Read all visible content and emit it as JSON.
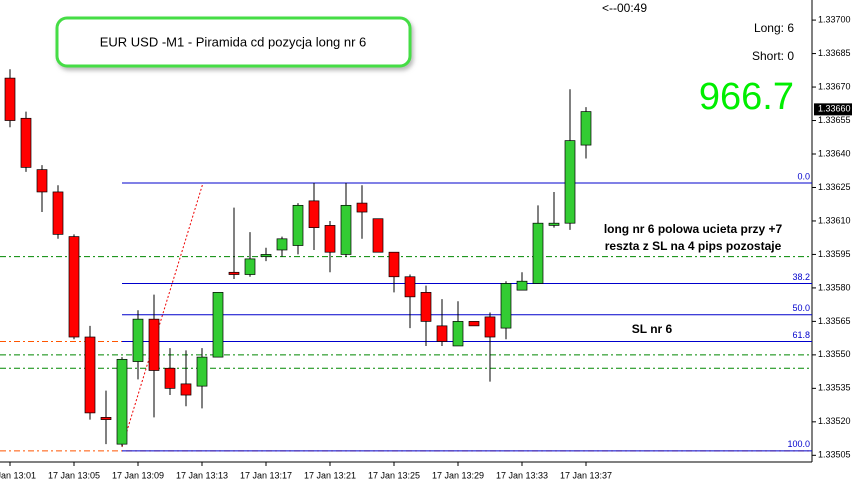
{
  "chart_data": {
    "type": "candlestick",
    "title": "EUR USD -M1 - Piramida cd pozycja long nr 6",
    "timer": "<--00:49",
    "long": "Long: 6",
    "short": "Short: 0",
    "profit": 966.7,
    "annotations": [
      "long nr 6 polowa ucieta przy +7",
      "reszta z SL na 4 pips pozostaje",
      "SL nr 6"
    ],
    "up_color": "#33cc33",
    "down_color": "#ff0000",
    "categories": [
      "17 Jan 13:01",
      null,
      null,
      null,
      "17 Jan 13:05",
      null,
      null,
      null,
      "17 Jan 13:09",
      null,
      null,
      null,
      "17 Jan 13:13",
      null,
      null,
      null,
      "17 Jan 13:17",
      null,
      null,
      null,
      "17 Jan 13:21",
      null,
      null,
      null,
      "17 Jan 13:25",
      null,
      null,
      null,
      "17 Jan 13:29",
      null,
      null,
      null,
      "17 Jan 13:33",
      null,
      null,
      null,
      "17 Jan 13:37"
    ],
    "open": [
      1.33674,
      1.33656,
      1.33633,
      1.33623,
      1.33603,
      1.33558,
      1.33522,
      1.3351,
      1.33547,
      1.33566,
      1.33544,
      1.33537,
      1.33536,
      1.33549,
      1.33587,
      1.33586,
      1.33594,
      1.33597,
      1.33599,
      1.33619,
      1.33608,
      1.33595,
      1.33618,
      1.33611,
      1.33596,
      1.33585,
      1.33578,
      1.33563,
      1.33554,
      1.33565,
      1.33567,
      1.33562,
      1.33579,
      1.33582,
      1.33608,
      1.33609,
      1.33644
    ],
    "high": [
      1.33678,
      1.33659,
      1.33635,
      1.33626,
      1.33604,
      1.33563,
      1.33534,
      1.33549,
      1.3357,
      1.33577,
      1.33553,
      1.33552,
      1.33553,
      1.33578,
      1.33616,
      1.33605,
      1.33598,
      1.33603,
      1.33618,
      1.33627,
      1.3361,
      1.33627,
      1.33626,
      1.33611,
      1.33596,
      1.33586,
      1.33581,
      1.33575,
      1.33574,
      1.33565,
      1.33569,
      1.33583,
      1.33587,
      1.33617,
      1.33623,
      1.33669,
      1.33661
    ],
    "low": [
      1.33652,
      1.33632,
      1.33614,
      1.33602,
      1.33557,
      1.33521,
      1.3351,
      1.33509,
      1.33539,
      1.33522,
      1.33532,
      1.33527,
      1.33526,
      1.33549,
      1.33584,
      1.33585,
      1.33592,
      1.33594,
      1.33595,
      1.33597,
      1.33587,
      1.33594,
      1.33602,
      1.33596,
      1.33578,
      1.33562,
      1.33554,
      1.33554,
      1.33554,
      1.33563,
      1.33538,
      1.33557,
      1.33579,
      1.33582,
      1.33607,
      1.33606,
      1.33638
    ],
    "close": [
      1.33655,
      1.33634,
      1.33623,
      1.33604,
      1.33558,
      1.33524,
      1.33521,
      1.33548,
      1.33566,
      1.33543,
      1.33535,
      1.33532,
      1.33549,
      1.33578,
      1.33586,
      1.33593,
      1.33595,
      1.33602,
      1.33617,
      1.33607,
      1.33596,
      1.33617,
      1.33614,
      1.33596,
      1.33585,
      1.33576,
      1.33565,
      1.33556,
      1.33565,
      1.33563,
      1.33558,
      1.33582,
      1.33583,
      1.33609,
      1.33609,
      1.33646,
      1.33659
    ],
    "ylim": [
      1.33502,
      1.33709
    ],
    "yticks": [
      {
        "value": 1.33505,
        "label": "1.33505"
      },
      {
        "value": 1.3352,
        "label": "1.33520"
      },
      {
        "value": 1.33535,
        "label": "1.33535"
      },
      {
        "value": 1.3355,
        "label": "1.33550"
      },
      {
        "value": 1.33565,
        "label": "1.33565"
      },
      {
        "value": 1.3358,
        "label": "1.33580"
      },
      {
        "value": 1.33595,
        "label": "1.33595"
      },
      {
        "value": 1.3361,
        "label": "1.33610"
      },
      {
        "value": 1.33625,
        "label": "1.33625"
      },
      {
        "value": 1.3364,
        "label": "1.33640"
      },
      {
        "value": 1.33655,
        "label": "1.33655"
      },
      {
        "value": 1.3367,
        "label": "1.33670"
      },
      {
        "value": 1.33685,
        "label": "1.33685"
      },
      {
        "value": 1.337,
        "label": "1.33700"
      }
    ],
    "price_tag": {
      "value": 1.3366,
      "label": "1.33660"
    },
    "fib_levels": [
      {
        "value": 1.33627,
        "label": "0.0"
      },
      {
        "value": 1.33582,
        "label": "38.2"
      },
      {
        "value": 1.33568,
        "label": "50.0"
      },
      {
        "value": 1.33556,
        "label": "61.8"
      },
      {
        "value": 1.33507,
        "label": "100.0"
      }
    ],
    "fib_color": "#0000cc",
    "levels": [
      {
        "value": 1.33594,
        "color": "#008800"
      },
      {
        "value": 1.3355,
        "color": "#008800"
      },
      {
        "value": 1.33544,
        "color": "#008800"
      },
      {
        "value": 1.33556,
        "color": "#ff5500"
      },
      {
        "value": 1.33507,
        "color": "#ff5500"
      }
    ]
  }
}
